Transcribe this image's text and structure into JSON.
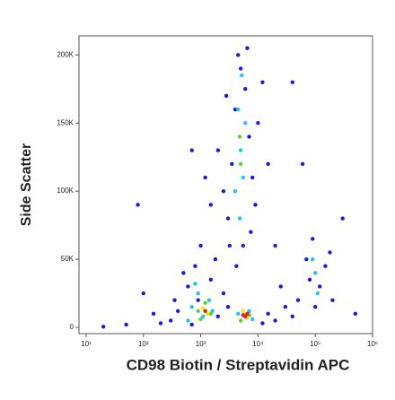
{
  "chart_data": {
    "type": "scatter",
    "x_label": "CD98 Biotin / Streptavidin APC",
    "y_label": "Side Scatter",
    "xscale": "log",
    "xlim": [
      7.5,
      1000000
    ],
    "ylim": [
      -4600,
      214000
    ],
    "xticks": [
      {
        "value": 10,
        "label": "10¹"
      },
      {
        "value": 100,
        "label": "10²"
      },
      {
        "value": 1000,
        "label": "10³"
      },
      {
        "value": 10000,
        "label": "10⁴"
      },
      {
        "value": 100000,
        "label": "10⁵"
      },
      {
        "value": 1000000,
        "label": "10⁶"
      }
    ],
    "yticks": [
      0,
      {
        "value": 50000,
        "label": "50K"
      },
      {
        "value": 100000,
        "label": "100K"
      },
      {
        "value": 150000,
        "label": "150K"
      },
      {
        "value": 200000,
        "label": "200K"
      }
    ],
    "series": [
      {
        "color": "#1a1ad8",
        "x": [
          300,
          400,
          600,
          700,
          800,
          900,
          1000,
          1500,
          2000,
          2500,
          350,
          500,
          1800,
          3000,
          200,
          150,
          3000,
          3500,
          4000,
          4500,
          5000,
          6000,
          7000,
          8000,
          9000,
          10000,
          3200,
          2500,
          2000,
          1500,
          12000,
          6500,
          5500,
          4200,
          7500,
          2800,
          1200,
          15000,
          20000,
          15000,
          20000,
          30000,
          50000,
          12000,
          25000,
          40000,
          70000,
          90000,
          120000,
          150000,
          200000,
          100000,
          80000,
          180000,
          100,
          50,
          80,
          60000,
          300000,
          700,
          20,
          500000,
          40000
        ],
        "y": [
          5000,
          12000,
          30000,
          2000,
          45000,
          20000,
          60000,
          35000,
          8000,
          25000,
          20000,
          40000,
          50000,
          15000,
          3000,
          10000,
          80000,
          120000,
          160000,
          200000,
          190000,
          175000,
          140000,
          110000,
          90000,
          150000,
          60000,
          100000,
          130000,
          90000,
          180000,
          205000,
          60000,
          45000,
          70000,
          170000,
          110000,
          120000,
          60000,
          10000,
          5000,
          15000,
          20000,
          3000,
          30000,
          8000,
          50000,
          65000,
          30000,
          45000,
          20000,
          15000,
          35000,
          55000,
          25000,
          2000,
          90000,
          120000,
          80000,
          130000,
          500,
          10000,
          180000
        ]
      },
      {
        "color": "#22c4e8",
        "x": [
          700,
          900,
          1100,
          1400,
          600,
          1600,
          800,
          4000,
          5000,
          4500,
          5500,
          6000,
          4800,
          5200,
          4500,
          7000,
          8000,
          100000,
          110000,
          90000
        ],
        "y": [
          15000,
          25000,
          8000,
          20000,
          5000,
          12000,
          32000,
          100000,
          130000,
          160000,
          110000,
          150000,
          80000,
          185000,
          10000,
          12000,
          6000,
          40000,
          25000,
          50000
        ]
      },
      {
        "color": "#5ad02a",
        "x": [
          900,
          1200,
          1000,
          1500,
          5000,
          4800,
          5000,
          7000
        ],
        "y": [
          12000,
          18000,
          6000,
          10000,
          120000,
          140000,
          5000,
          9000
        ]
      },
      {
        "color": "#f0e020",
        "x": [
          1100,
          1300,
          5500,
          6500
        ],
        "y": [
          14000,
          10000,
          12000,
          7000
        ]
      },
      {
        "color": "#e02020",
        "x": [
          5500,
          6000,
          6500,
          1200
        ],
        "y": [
          9000,
          8000,
          10000,
          12000
        ]
      }
    ]
  }
}
